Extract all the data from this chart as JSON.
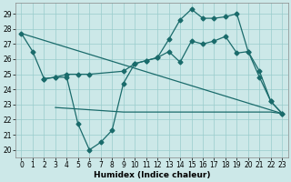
{
  "xlabel": "Humidex (Indice chaleur)",
  "bg_color": "#cce8e8",
  "grid_color": "#99cccc",
  "line_color": "#1a6b6b",
  "xlim": [
    -0.5,
    23.5
  ],
  "ylim": [
    19.5,
    29.7
  ],
  "xticks": [
    0,
    1,
    2,
    3,
    4,
    5,
    6,
    7,
    8,
    9,
    10,
    11,
    12,
    13,
    14,
    15,
    16,
    17,
    18,
    19,
    20,
    21,
    22,
    23
  ],
  "yticks": [
    20,
    21,
    22,
    23,
    24,
    25,
    26,
    27,
    28,
    29
  ],
  "line_wavy": {
    "x": [
      0,
      1,
      2,
      3,
      4,
      5,
      6,
      7,
      8,
      9,
      10,
      11,
      12,
      13,
      14,
      15,
      16,
      17,
      18,
      19,
      20,
      21,
      22,
      23
    ],
    "y": [
      27.7,
      26.5,
      24.7,
      24.8,
      24.8,
      21.7,
      20.0,
      20.5,
      21.3,
      24.4,
      25.7,
      25.9,
      26.1,
      27.3,
      28.6,
      29.3,
      28.7,
      28.7,
      28.8,
      29.0,
      26.5,
      25.2,
      23.2,
      22.4
    ]
  },
  "line_up": {
    "x": [
      2,
      3,
      4,
      5,
      6,
      9,
      10,
      11,
      12,
      13,
      14,
      15,
      16,
      17,
      18,
      19,
      20,
      21,
      22,
      23
    ],
    "y": [
      24.7,
      24.8,
      25.0,
      25.0,
      25.0,
      25.2,
      25.7,
      25.9,
      26.1,
      26.5,
      25.8,
      27.2,
      27.0,
      27.2,
      27.5,
      26.4,
      26.5,
      24.8,
      23.2,
      22.4
    ]
  },
  "line_down": {
    "x": [
      0,
      23
    ],
    "y": [
      27.7,
      22.4
    ]
  },
  "line_flat": {
    "x": [
      3,
      9,
      10,
      11,
      12,
      13,
      14,
      15,
      16,
      17,
      18,
      19,
      20,
      21,
      22,
      23
    ],
    "y": [
      22.8,
      22.5,
      22.5,
      22.5,
      22.5,
      22.5,
      22.5,
      22.5,
      22.5,
      22.5,
      22.5,
      22.5,
      22.5,
      22.5,
      22.5,
      22.4
    ]
  }
}
